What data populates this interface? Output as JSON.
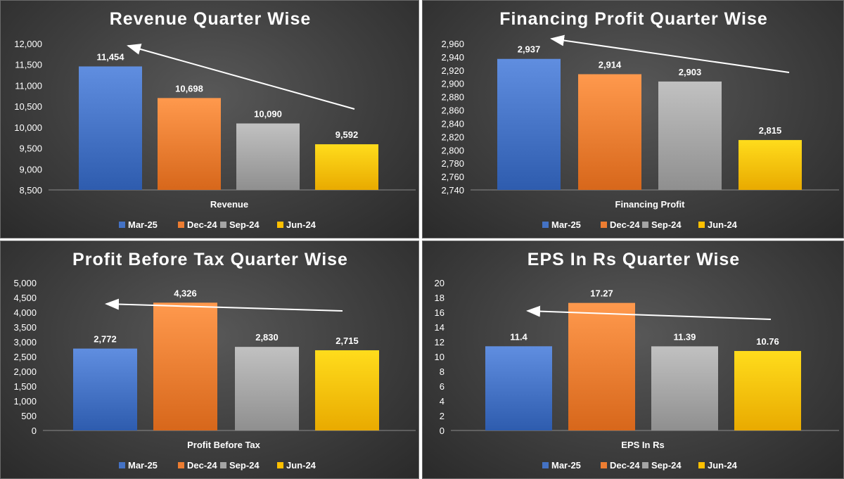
{
  "legend": [
    {
      "name": "Mar-25",
      "color": "#4472C4"
    },
    {
      "name": "Dec-24",
      "color": "#ED7D31"
    },
    {
      "name": "Sep-24",
      "color": "#A5A5A5"
    },
    {
      "name": "Jun-24",
      "color": "#FFC000"
    }
  ],
  "chart_data": [
    {
      "type": "bar",
      "title": "Revenue Quarter Wise",
      "xlabel": "Revenue",
      "categories": [
        "Revenue"
      ],
      "series": [
        {
          "name": "Mar-25",
          "values": [
            11454
          ],
          "label": "11,454"
        },
        {
          "name": "Dec-24",
          "values": [
            10698
          ],
          "label": "10,698"
        },
        {
          "name": "Sep-24",
          "values": [
            10090
          ],
          "label": "10,090"
        },
        {
          "name": "Jun-24",
          "values": [
            9592
          ],
          "label": "9,592"
        }
      ],
      "ylim": [
        8500,
        12000
      ],
      "yticks": [
        "8,500",
        "9,000",
        "9,500",
        "10,000",
        "10,500",
        "11,000",
        "11,500",
        "12,000"
      ],
      "legend_position": "bottom",
      "grid": false,
      "trend_arrow": "from Jun-24 back to Mar-25 (upward)"
    },
    {
      "type": "bar",
      "title": "Financing Profit Quarter Wise",
      "xlabel": "Financing Profit",
      "categories": [
        "Financing Profit"
      ],
      "series": [
        {
          "name": "Mar-25",
          "values": [
            2937
          ],
          "label": "2,937"
        },
        {
          "name": "Dec-24",
          "values": [
            2914
          ],
          "label": "2,914"
        },
        {
          "name": "Sep-24",
          "values": [
            2903
          ],
          "label": "2,903"
        },
        {
          "name": "Jun-24",
          "values": [
            2815
          ],
          "label": "2,815"
        }
      ],
      "ylim": [
        2740,
        2960
      ],
      "yticks": [
        "2,740",
        "2,760",
        "2,780",
        "2,800",
        "2,820",
        "2,840",
        "2,860",
        "2,880",
        "2,900",
        "2,920",
        "2,940",
        "2,960"
      ],
      "legend_position": "bottom",
      "grid": false,
      "trend_arrow": "from Jun-24 back to Mar-25 (upward)"
    },
    {
      "type": "bar",
      "title": "Profit Before Tax Quarter Wise",
      "xlabel": "Profit Before Tax",
      "categories": [
        "Profit Before Tax"
      ],
      "series": [
        {
          "name": "Mar-25",
          "values": [
            2772
          ],
          "label": "2,772"
        },
        {
          "name": "Dec-24",
          "values": [
            4326
          ],
          "label": "4,326"
        },
        {
          "name": "Sep-24",
          "values": [
            2830
          ],
          "label": "2,830"
        },
        {
          "name": "Jun-24",
          "values": [
            2715
          ],
          "label": "2,715"
        }
      ],
      "ylim": [
        0,
        5000
      ],
      "yticks": [
        "0",
        "500",
        "1,000",
        "1,500",
        "2,000",
        "2,500",
        "3,000",
        "3,500",
        "4,000",
        "4,500",
        "5,000"
      ],
      "legend_position": "bottom",
      "grid": false,
      "trend_arrow": "from Jun-24 back to Mar-25 (slightly upward)"
    },
    {
      "type": "bar",
      "title": "EPS In Rs Quarter Wise",
      "xlabel": "EPS In Rs",
      "categories": [
        "EPS In Rs"
      ],
      "series": [
        {
          "name": "Mar-25",
          "values": [
            11.4
          ],
          "label": "11.4"
        },
        {
          "name": "Dec-24",
          "values": [
            17.27
          ],
          "label": "17.27"
        },
        {
          "name": "Sep-24",
          "values": [
            11.39
          ],
          "label": "11.39"
        },
        {
          "name": "Jun-24",
          "values": [
            10.76
          ],
          "label": "10.76"
        }
      ],
      "ylim": [
        0,
        20
      ],
      "yticks": [
        "0",
        "2",
        "4",
        "6",
        "8",
        "10",
        "12",
        "14",
        "16",
        "18",
        "20"
      ],
      "legend_position": "bottom",
      "grid": false,
      "trend_arrow": "from Jun-24 back to Mar-25 (slightly upward)"
    }
  ]
}
